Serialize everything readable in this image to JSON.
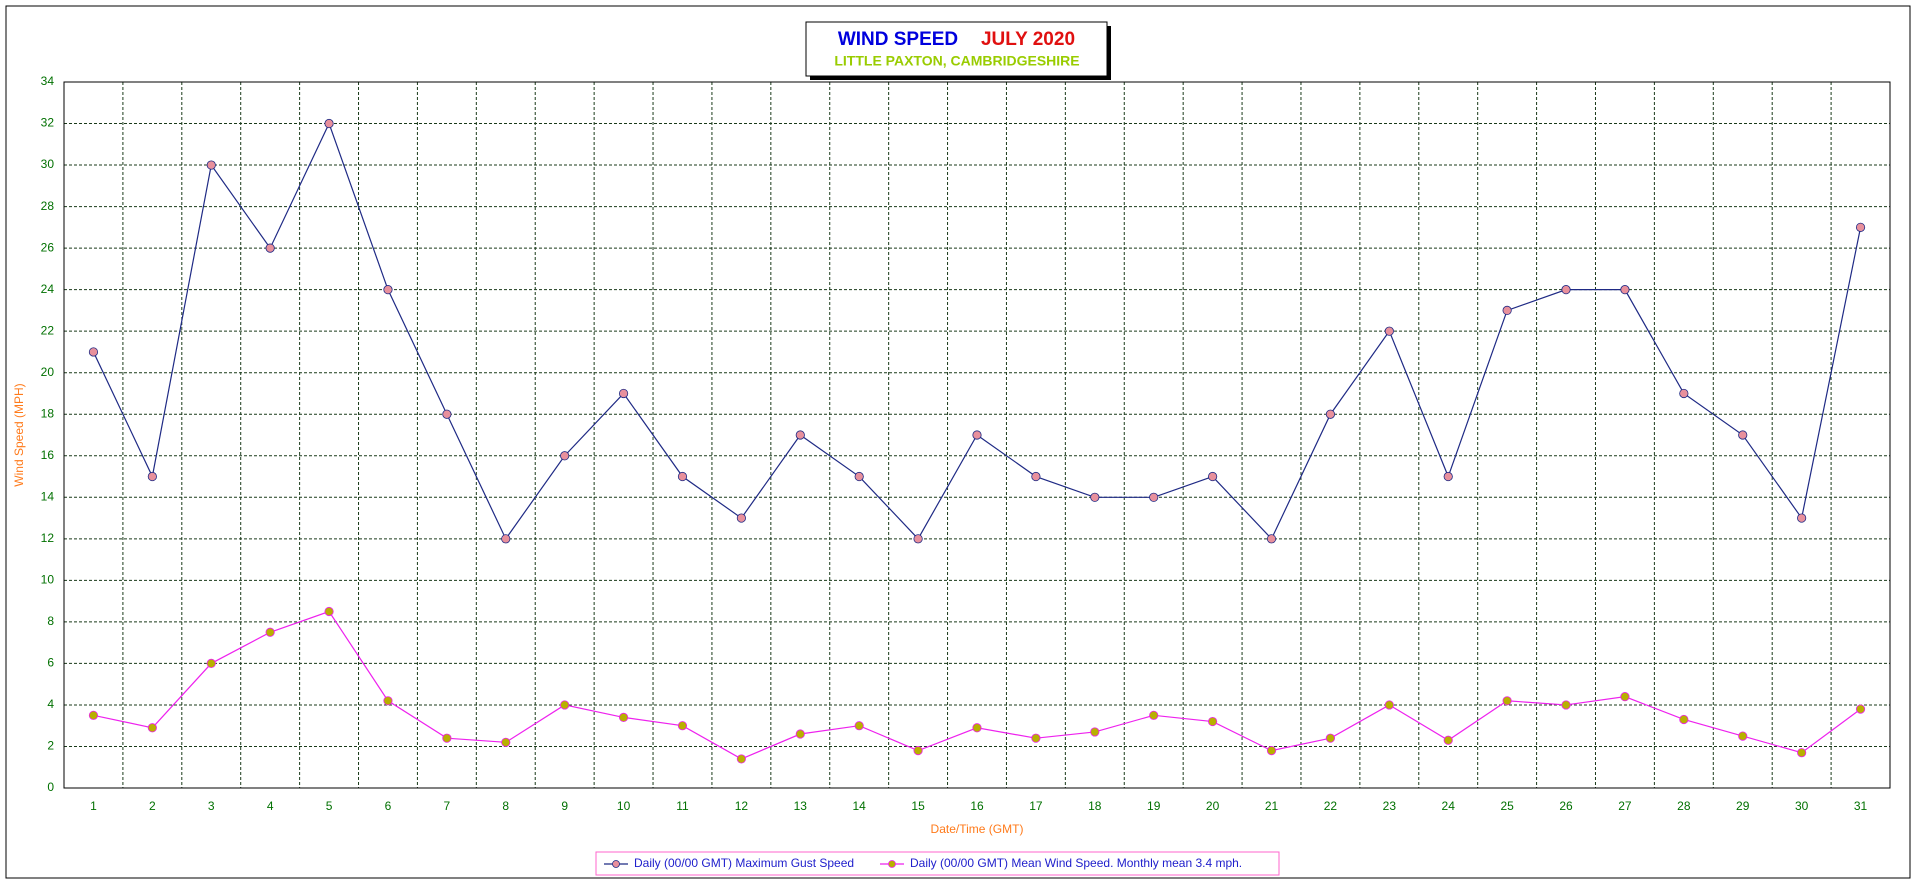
{
  "chart_data": {
    "type": "line",
    "title": "WIND SPEED",
    "title_date": "JULY 2020",
    "subtitle": "LITTLE PAXTON, CAMBRIDGESHIRE",
    "x_label": "Date/Time (GMT)",
    "y_label": "Wind Speed (MPH)",
    "categories": [
      "1",
      "2",
      "3",
      "4",
      "5",
      "6",
      "7",
      "8",
      "9",
      "10",
      "11",
      "12",
      "13",
      "14",
      "15",
      "16",
      "17",
      "18",
      "19",
      "20",
      "21",
      "22",
      "23",
      "24",
      "25",
      "26",
      "27",
      "28",
      "29",
      "30",
      "31"
    ],
    "series": [
      {
        "name": "Daily (00/00 GMT) Maximum Gust Speed",
        "color": "#1f2a85",
        "marker_color": "#e8909c",
        "values": [
          21,
          15,
          30,
          26,
          32,
          24,
          18,
          12,
          16,
          19,
          15,
          13,
          17,
          15,
          12,
          17,
          15,
          14,
          14,
          15,
          12,
          18,
          22,
          15,
          23,
          24,
          24,
          19,
          17,
          13,
          27
        ]
      },
      {
        "name": "Daily (00/00 GMT) Mean Wind Speed. Monthly mean 3.4 mph.",
        "color": "#ee22ee",
        "marker_color": "#b8b000",
        "values": [
          3.5,
          2.9,
          6.0,
          7.5,
          8.5,
          4.2,
          2.4,
          2.2,
          4.0,
          3.4,
          3.0,
          1.4,
          2.6,
          3.0,
          1.8,
          2.9,
          2.4,
          2.7,
          3.5,
          3.2,
          1.8,
          2.4,
          4.0,
          2.3,
          4.2,
          4.0,
          4.4,
          3.3,
          2.5,
          1.7,
          3.8
        ]
      }
    ],
    "ylim": [
      0,
      34
    ],
    "yticks": [
      0,
      2,
      4,
      6,
      8,
      10,
      12,
      14,
      16,
      18,
      20,
      22,
      24,
      26,
      28,
      30,
      32,
      34
    ],
    "grid": true
  }
}
